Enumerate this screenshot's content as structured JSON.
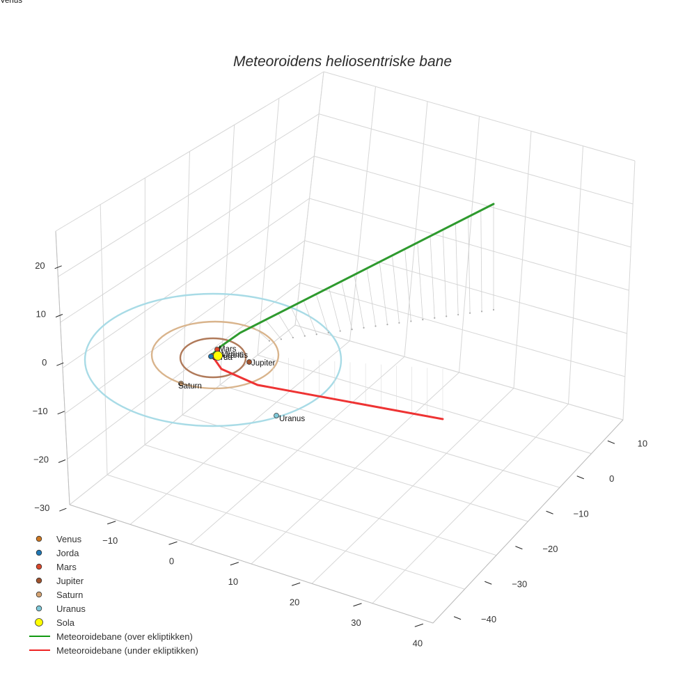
{
  "chart_data": {
    "type": "scatter3d",
    "title": "Meteoroidens heliosentriske bane",
    "axes": {
      "x": {
        "ticks": [
          "−10",
          "0",
          "10",
          "20",
          "30",
          "40"
        ],
        "range": [
          -15,
          45
        ]
      },
      "y": {
        "ticks": [
          "−40",
          "−30",
          "−20",
          "−10",
          "0",
          "10"
        ],
        "range": [
          -45,
          15
        ]
      },
      "z": {
        "ticks": [
          "20",
          "10",
          "0",
          "−10",
          "−20",
          "−30"
        ],
        "range": [
          -33,
          27
        ]
      }
    },
    "grid": true,
    "legend_position": "bottom-left",
    "planets": [
      {
        "name": "Venus",
        "label": "Venus",
        "color": "#cc7722"
      },
      {
        "name": "Jorda",
        "label": "Jorda",
        "color": "#1f77b4"
      },
      {
        "name": "Mars",
        "label": "Mars",
        "color": "#d9472b"
      },
      {
        "name": "Jupiter",
        "label": "Jupiter",
        "color": "#a0522d"
      },
      {
        "name": "Saturn",
        "label": "Saturn",
        "color": "#d4a373"
      },
      {
        "name": "Uranus",
        "label": "Uranus",
        "color": "#7ec8d8"
      },
      {
        "name": "Sola",
        "label": "",
        "color": "#ffff00"
      }
    ],
    "orbits": [
      {
        "name": "Jupiter",
        "color": "#b07a5a"
      },
      {
        "name": "Saturn",
        "color": "#d9b48c"
      },
      {
        "name": "Uranus",
        "color": "#a8dbe6"
      }
    ],
    "series": [
      {
        "name": "Meteoroidebane (over ekliptikken)",
        "color": "#2e9a2e"
      },
      {
        "name": "Meteoroidebane (under ekliptikken)",
        "color": "#ee3333"
      }
    ],
    "legend": [
      {
        "label": "Venus",
        "type": "marker",
        "color": "#cc7722"
      },
      {
        "label": "Jorda",
        "type": "marker",
        "color": "#1f77b4"
      },
      {
        "label": "Mars",
        "type": "marker",
        "color": "#d9472b"
      },
      {
        "label": "Jupiter",
        "type": "marker",
        "color": "#a0522d"
      },
      {
        "label": "Saturn",
        "type": "marker",
        "color": "#d4a373"
      },
      {
        "label": "Uranus",
        "type": "marker",
        "color": "#7ec8d8"
      },
      {
        "label": "Sola",
        "type": "marker-large",
        "color": "#ffff00"
      },
      {
        "label": "Meteoroidebane (over ekliptikken)",
        "type": "line",
        "color": "#119911"
      },
      {
        "label": "Meteoroidebane (under ekliptikken)",
        "type": "line",
        "color": "#ee2222"
      }
    ]
  }
}
